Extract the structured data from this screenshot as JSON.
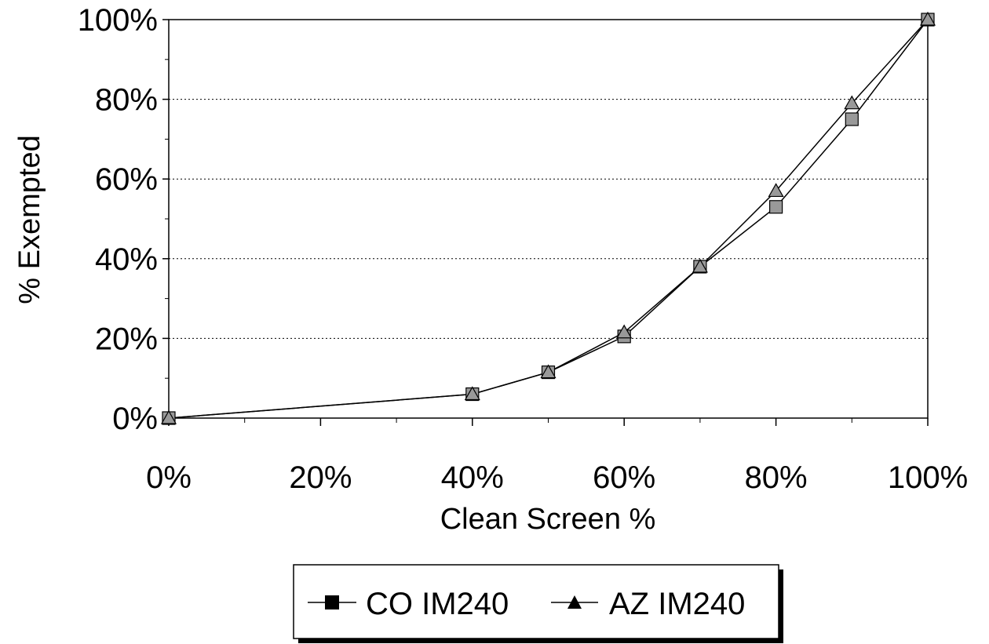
{
  "chart_data": {
    "type": "line",
    "title": "",
    "xlabel": "Clean Screen %",
    "ylabel": "% Exempted",
    "xlim": [
      0,
      100
    ],
    "ylim": [
      0,
      100
    ],
    "x_ticks": [
      "0%",
      "20%",
      "40%",
      "60%",
      "80%",
      "100%"
    ],
    "y_ticks": [
      "0%",
      "20%",
      "40%",
      "60%",
      "80%",
      "100%"
    ],
    "grid": "horizontal dotted",
    "legend_position": "bottom",
    "colors": {
      "line": "#000000",
      "marker_fill": "#999999"
    },
    "series": [
      {
        "name": "CO IM240",
        "marker": "square",
        "x": [
          0,
          40,
          50,
          60,
          70,
          80,
          90,
          100
        ],
        "y": [
          0,
          6,
          11.5,
          20.5,
          38,
          53,
          75,
          100
        ]
      },
      {
        "name": "AZ IM240",
        "marker": "triangle",
        "x": [
          0,
          40,
          50,
          60,
          70,
          80,
          90,
          100
        ],
        "y": [
          0,
          6,
          11.5,
          21.5,
          38,
          57,
          79,
          100
        ]
      }
    ]
  }
}
